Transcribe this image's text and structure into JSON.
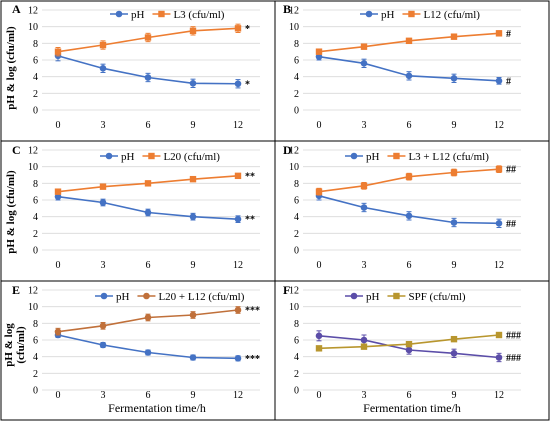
{
  "x_axis_label": "Fermentation time/h",
  "y_axis_label": "pH & log (cfu/ml)",
  "y_axis_label_panel_e": [
    "pH & log",
    "(cfu/ml)"
  ],
  "colors": {
    "ph": "#4472C4",
    "l3": "#ED7D31",
    "l12": "#ED7D31",
    "l20": "#ED7D31",
    "l3_l12": "#ED7D31",
    "l20_l12": "#C0703A",
    "ph_f": "#5B4DA8",
    "spf": "#B8962E"
  },
  "chart_data": [
    {
      "panel": "A",
      "type": "line",
      "x": [
        0,
        3,
        6,
        9,
        12
      ],
      "ylim": [
        0,
        12
      ],
      "yticks": [
        0,
        2,
        4,
        6,
        8,
        10,
        12
      ],
      "series": [
        {
          "name": "pH",
          "values": [
            6.5,
            5.0,
            3.9,
            3.2,
            3.15
          ],
          "errors": [
            0.6,
            0.5,
            0.5,
            0.5,
            0.5
          ],
          "marker": "circle",
          "color_key": "ph",
          "end_label": "*"
        },
        {
          "name": "L3 (cfu/ml)",
          "values": [
            7.0,
            7.8,
            8.7,
            9.5,
            9.8
          ],
          "errors": [
            0.5,
            0.5,
            0.5,
            0.5,
            0.5
          ],
          "marker": "square",
          "color_key": "l3",
          "end_label": "*"
        }
      ],
      "legend": "top-right"
    },
    {
      "panel": "B",
      "type": "line",
      "x": [
        0,
        3,
        6,
        9,
        12
      ],
      "ylim": [
        0,
        12
      ],
      "yticks": [
        0,
        2,
        4,
        6,
        8,
        10,
        12
      ],
      "series": [
        {
          "name": "pH",
          "values": [
            6.4,
            5.6,
            4.1,
            3.8,
            3.5
          ],
          "errors": [
            0.4,
            0.5,
            0.5,
            0.5,
            0.4
          ],
          "marker": "circle",
          "color_key": "ph",
          "end_label": "#"
        },
        {
          "name": "L12 (cfu/ml)",
          "values": [
            7.0,
            7.6,
            8.3,
            8.8,
            9.2
          ],
          "errors": [
            0.3,
            0.3,
            0.3,
            0.3,
            0.3
          ],
          "marker": "square",
          "color_key": "l12",
          "end_label": "#"
        }
      ],
      "legend": "top-right"
    },
    {
      "panel": "C",
      "type": "line",
      "x": [
        0,
        3,
        6,
        9,
        12
      ],
      "ylim": [
        0,
        12
      ],
      "yticks": [
        0,
        2,
        4,
        6,
        8,
        10,
        12
      ],
      "series": [
        {
          "name": "pH",
          "values": [
            6.4,
            5.7,
            4.5,
            4.0,
            3.7
          ],
          "errors": [
            0.4,
            0.4,
            0.4,
            0.4,
            0.4
          ],
          "marker": "circle",
          "color_key": "ph",
          "end_label": "**"
        },
        {
          "name": "L20 (cfu/ml)",
          "values": [
            7.0,
            7.6,
            8.0,
            8.5,
            8.9
          ],
          "errors": [
            0.2,
            0.2,
            0.2,
            0.2,
            0.2
          ],
          "marker": "square",
          "color_key": "l20",
          "end_label": "**"
        }
      ],
      "legend": "top-right"
    },
    {
      "panel": "D",
      "type": "line",
      "x": [
        0,
        3,
        6,
        9,
        12
      ],
      "ylim": [
        0,
        12
      ],
      "yticks": [
        0,
        2,
        4,
        6,
        8,
        10,
        12
      ],
      "series": [
        {
          "name": "pH",
          "values": [
            6.5,
            5.1,
            4.1,
            3.3,
            3.2
          ],
          "errors": [
            0.5,
            0.5,
            0.5,
            0.5,
            0.5
          ],
          "marker": "circle",
          "color_key": "ph",
          "end_label": "##"
        },
        {
          "name": "L3 + L12 (cfu/ml)",
          "values": [
            7.0,
            7.7,
            8.8,
            9.3,
            9.7
          ],
          "errors": [
            0.4,
            0.4,
            0.4,
            0.4,
            0.4
          ],
          "marker": "square",
          "color_key": "l3_l12",
          "end_label": "##"
        }
      ],
      "legend": "top-right"
    },
    {
      "panel": "E",
      "type": "line",
      "x": [
        0,
        3,
        6,
        9,
        12
      ],
      "ylim": [
        0,
        12
      ],
      "yticks": [
        0,
        2,
        4,
        6,
        8,
        10,
        12
      ],
      "series": [
        {
          "name": "pH",
          "values": [
            6.6,
            5.4,
            4.5,
            3.9,
            3.8
          ],
          "errors": [
            0.3,
            0.3,
            0.3,
            0.3,
            0.3
          ],
          "marker": "circle",
          "color_key": "ph",
          "end_label": "***"
        },
        {
          "name": "L20 + L12 (cfu/ml)",
          "values": [
            7.0,
            7.7,
            8.7,
            9.0,
            9.6
          ],
          "errors": [
            0.4,
            0.4,
            0.4,
            0.4,
            0.4
          ],
          "marker": "circle",
          "color_key": "l20_l12",
          "end_label": "***"
        }
      ],
      "legend": "top-right"
    },
    {
      "panel": "F",
      "type": "line",
      "x": [
        0,
        3,
        6,
        9,
        12
      ],
      "ylim": [
        0,
        12
      ],
      "yticks": [
        0,
        2,
        4,
        6,
        8,
        10,
        12
      ],
      "series": [
        {
          "name": "pH",
          "values": [
            6.5,
            6.0,
            4.8,
            4.4,
            3.9
          ],
          "errors": [
            0.6,
            0.6,
            0.5,
            0.5,
            0.5
          ],
          "marker": "circle",
          "color_key": "ph_f",
          "end_label": "###"
        },
        {
          "name": "SPF (cfu/ml)",
          "values": [
            5.0,
            5.2,
            5.5,
            6.1,
            6.6
          ],
          "errors": [
            0.2,
            0.2,
            0.2,
            0.2,
            0.2
          ],
          "marker": "square",
          "color_key": "spf",
          "end_label": "###"
        }
      ],
      "legend": "top-right"
    }
  ]
}
